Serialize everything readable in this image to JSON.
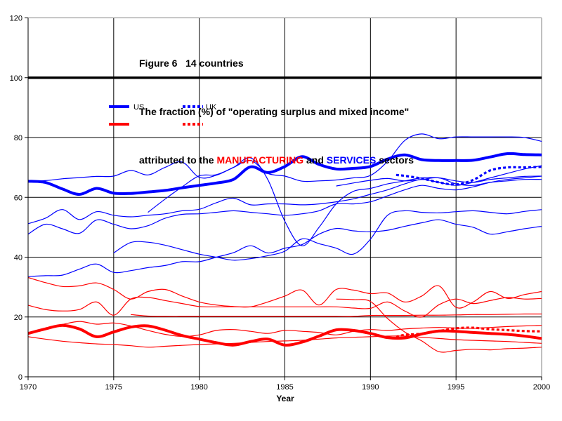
{
  "colors": {
    "services_blue": "#0000FF",
    "manufacturing_red": "#FF0000",
    "reference_line_black": "#000000",
    "plot_border_gray": "#808080",
    "gridline_black": "#000000"
  },
  "chart_data": {
    "type": "line",
    "title_lines": [
      "Figure 6   14 countries",
      "The fraction (%) of \"operating surplus and mixed income\"",
      "attributed to the MANUFACTURING and SERVICES sectors"
    ],
    "title_line3_segments": [
      {
        "text": "attributed to the ",
        "color": "#000000"
      },
      {
        "text": "MANUFACTURING",
        "color": "#FF0000"
      },
      {
        "text": " and ",
        "color": "#000000"
      },
      {
        "text": "SERVICES",
        "color": "#0000FF"
      },
      {
        "text": " sectors",
        "color": "#000000"
      }
    ],
    "xlabel": "Year",
    "x_ticks": [
      "1970",
      "1975",
      "1980",
      "1985",
      "1990",
      "1995",
      "2000"
    ],
    "y_ticks": [
      "0",
      "20",
      "40",
      "60",
      "80",
      "100",
      "120"
    ],
    "xlim": [
      1970,
      2000
    ],
    "ylim": [
      0,
      120
    ],
    "grid": true,
    "reference_line_y": 100,
    "legend": {
      "position": "inside-upper-left",
      "entries": [
        {
          "label": "US",
          "style": "solid",
          "services_color": "#0000FF",
          "manufacturing_color": "#FF0000"
        },
        {
          "label": "UK",
          "style": "dotted",
          "services_color": "#0000FF",
          "manufacturing_color": "#FF0000"
        }
      ]
    },
    "series": [
      {
        "name": "US services",
        "country": "US",
        "sector": "services",
        "color": "#0000FF",
        "width": 4,
        "dash": null,
        "x_start": 1970,
        "x_step": 1,
        "y": [
          65.4,
          65,
          62.8,
          61,
          63,
          61.4,
          61.3,
          61.8,
          62.3,
          63.2,
          64,
          64.8,
          66,
          70.2,
          68.3,
          70.3,
          73.6,
          71,
          69.5,
          69.7,
          70.3,
          72.8,
          74.2,
          72.6,
          72.3,
          72.3,
          72.4,
          73.5,
          74.6,
          74.3,
          74.2
        ]
      },
      {
        "name": "services country 2",
        "sector": "services",
        "color": "#0000FF",
        "width": 1.2,
        "dash": null,
        "x_start": 1970,
        "x_step": 1,
        "y": [
          65.3,
          65.6,
          66.2,
          66.6,
          67,
          67.1,
          69,
          67.5,
          70,
          71.8,
          66.7,
          67.4,
          70,
          72.3,
          68,
          67.1,
          65.4,
          65.5,
          65.8,
          66.5,
          67.3,
          72,
          79,
          81.2,
          79.6,
          80.2,
          80.2,
          80.2,
          80.2,
          80,
          78.7
        ]
      },
      {
        "name": "services country 3",
        "sector": "services",
        "color": "#0000FF",
        "width": 1.2,
        "dash": null,
        "x_start": 1970,
        "x_step": 1,
        "y": [
          51.2,
          53,
          55.9,
          52.6,
          55.2,
          54,
          53.5,
          54,
          54.5,
          55.5,
          56,
          58.2,
          59.7,
          57.5,
          57.8,
          57.8,
          57.5,
          57.8,
          58.5,
          59.5,
          61,
          62.5,
          64.5,
          66,
          65,
          64,
          65,
          66.5,
          68,
          69.5,
          70.6
        ]
      },
      {
        "name": "services country 4",
        "sector": "services",
        "color": "#0000FF",
        "width": 1.2,
        "dash": null,
        "x_start": 1970,
        "x_step": 1,
        "y": [
          47.7,
          51,
          49.5,
          48,
          52.4,
          51,
          49.5,
          50.5,
          53,
          54.3,
          54.5,
          55,
          55.5,
          55,
          54.5,
          54,
          54.5,
          55.5,
          57.8,
          57.8,
          58.5,
          60.5,
          62.5,
          64,
          63,
          62.5,
          63.5,
          65,
          66,
          66.5,
          67.1
        ]
      },
      {
        "name": "services country 5",
        "sector": "services",
        "color": "#0000FF",
        "width": 1.2,
        "dash": null,
        "x_start": 1970,
        "x_step": 1,
        "y": [
          33.5,
          33.8,
          34,
          36,
          37.7,
          34.9,
          35.5,
          36.5,
          37.2,
          38.5,
          38.5,
          40,
          41.5,
          43.8,
          41.4,
          43,
          44.2,
          47.7,
          49.6,
          48.8,
          48.5,
          49,
          50.3,
          51.5,
          52.5,
          51,
          50,
          47.7,
          48.5,
          49.5,
          50.3
        ]
      },
      {
        "name": "services country 6",
        "sector": "services",
        "color": "#0000FF",
        "width": 1.2,
        "dash": null,
        "x_start": 1975,
        "x_step": 1,
        "y": [
          41.4,
          44.9,
          45,
          44,
          42.5,
          41,
          40,
          39,
          39.5,
          40.5,
          42,
          46.1,
          44.5,
          43,
          41,
          46,
          54,
          55.5,
          55,
          54.8,
          55.2,
          55.5,
          55,
          54.5,
          55.3,
          55.9
        ]
      },
      {
        "name": "services country 7",
        "sector": "services",
        "color": "#0000FF",
        "width": 1.2,
        "dash": null,
        "x_start": 1977,
        "x_step": 1,
        "y": [
          55,
          59.4,
          63.5,
          67.2,
          67.6,
          70,
          73.2,
          66,
          52,
          43.8,
          50,
          57.8,
          62,
          63,
          64.5,
          65.5,
          66.5,
          66.5,
          65.5,
          65,
          66,
          66.5,
          67,
          67.1
        ]
      },
      {
        "name": "services country 8",
        "sector": "services",
        "color": "#0000FF",
        "width": 1.2,
        "dash": null,
        "x_start": 1988,
        "x_step": 1,
        "y": [
          63.8,
          64.8,
          65.7,
          66.3,
          65.5,
          66,
          66.5,
          64.5,
          64,
          65,
          65.5,
          66,
          66
        ]
      },
      {
        "name": "UK services",
        "country": "UK",
        "sector": "services",
        "color": "#0000FF",
        "width": 3.2,
        "dash": "4 3.2",
        "x": [
          1991.5,
          1992,
          1993,
          1994,
          1995,
          1996,
          1997,
          1998,
          1999,
          2000
        ],
        "y": [
          67.5,
          67.2,
          66.3,
          65,
          64.3,
          65.8,
          69,
          70,
          70,
          70.2
        ]
      },
      {
        "name": "US manufacturing",
        "country": "US",
        "sector": "manufacturing",
        "color": "#FF0000",
        "width": 4,
        "dash": null,
        "x_start": 1970,
        "x_step": 1,
        "y": [
          14.5,
          16,
          17.2,
          16,
          13.4,
          15,
          16.6,
          17,
          15.6,
          13.8,
          12.6,
          11.4,
          10.6,
          11.8,
          12.6,
          10.6,
          11.6,
          13.6,
          15.7,
          15.5,
          14.5,
          13.1,
          13,
          14.3,
          15.3,
          15.2,
          14.8,
          14.5,
          14.2,
          13.6,
          12.8
        ]
      },
      {
        "name": "manufacturing country 2",
        "sector": "manufacturing",
        "color": "#FF0000",
        "width": 1.2,
        "dash": null,
        "x_start": 1970,
        "x_step": 1,
        "y": [
          33.2,
          31.5,
          30.2,
          30.4,
          31.4,
          29.2,
          26,
          28.5,
          29.2,
          27,
          25,
          24,
          23.5,
          23.4,
          25,
          27,
          29,
          24,
          29.2,
          29,
          27.8,
          28,
          25,
          27,
          30.4,
          23.2,
          25,
          28.5,
          26.2,
          27.5,
          28.5
        ]
      },
      {
        "name": "manufacturing country 3",
        "sector": "manufacturing",
        "color": "#FF0000",
        "width": 1.2,
        "dash": null,
        "x_start": 1970,
        "x_step": 1,
        "y": [
          23.9,
          22.5,
          22,
          22.5,
          25,
          20.6,
          26,
          26.5,
          25.5,
          24.5,
          23.5,
          23.4,
          23.4,
          23.4,
          23.4,
          23.4,
          23.4,
          23.4,
          23.4,
          23,
          22.9,
          25,
          22,
          20,
          24.1,
          26,
          24.5,
          25.5,
          26.5,
          26,
          26.2
        ]
      },
      {
        "name": "manufacturing country 4",
        "sector": "manufacturing",
        "color": "#FF0000",
        "width": 1.2,
        "dash": null,
        "x_start": 1976,
        "x_step": 1,
        "y": [
          20.8,
          20.3,
          20.2,
          20.2,
          20.2,
          20.2,
          20.2,
          20.2,
          20.2,
          20.2,
          20.2,
          20.2,
          20.2,
          20.2,
          20.5,
          20.5,
          20.5,
          20.6,
          20.6,
          20.7,
          20.8,
          20.8,
          20.9,
          21,
          21
        ]
      },
      {
        "name": "manufacturing country 5",
        "sector": "manufacturing",
        "color": "#FF0000",
        "width": 1.2,
        "dash": null,
        "x_start": 1970,
        "x_step": 1,
        "y": [
          14.5,
          16.2,
          17.5,
          18.5,
          17.6,
          18,
          17,
          15.5,
          14.2,
          13.5,
          14,
          15.5,
          15.8,
          15.2,
          14.5,
          15.5,
          15.2,
          14.8,
          14,
          15.2,
          15.8,
          15.5,
          16,
          16.3,
          16.5,
          16.3,
          16.2,
          16.5,
          16.8,
          17,
          17.2
        ]
      },
      {
        "name": "manufacturing country 6",
        "sector": "manufacturing",
        "color": "#FF0000",
        "width": 1.2,
        "dash": null,
        "x_start": 1970,
        "x_step": 1,
        "y": [
          13.4,
          12.6,
          11.9,
          11.4,
          11,
          10.8,
          10.4,
          9.9,
          10.2,
          10.5,
          10.8,
          11,
          11.2,
          11.5,
          11.8,
          12,
          12.2,
          12.6,
          13,
          13.2,
          13.4,
          13.6,
          13.6,
          13.2,
          12.8,
          12.4,
          12.2,
          12,
          11.8,
          11.5,
          11.2
        ]
      },
      {
        "name": "manufacturing country 7",
        "sector": "manufacturing",
        "color": "#FF0000",
        "width": 1.2,
        "dash": null,
        "x_start": 1988,
        "x_step": 1,
        "y": [
          26,
          25.8,
          25.2,
          19.5,
          15,
          12,
          8.4,
          8.8,
          9.2,
          9,
          9.4,
          9.6,
          9.9
        ]
      },
      {
        "name": "UK manufacturing",
        "country": "UK",
        "sector": "manufacturing",
        "color": "#FF0000",
        "width": 3.2,
        "dash": "4 3.2",
        "x": [
          1991.5,
          1992,
          1993,
          1994,
          1995,
          1996,
          1997,
          1998,
          1999,
          2000
        ],
        "y": [
          13.4,
          14,
          14.4,
          15.3,
          16.2,
          16.4,
          15.9,
          15.6,
          15.3,
          15.2
        ]
      }
    ]
  }
}
